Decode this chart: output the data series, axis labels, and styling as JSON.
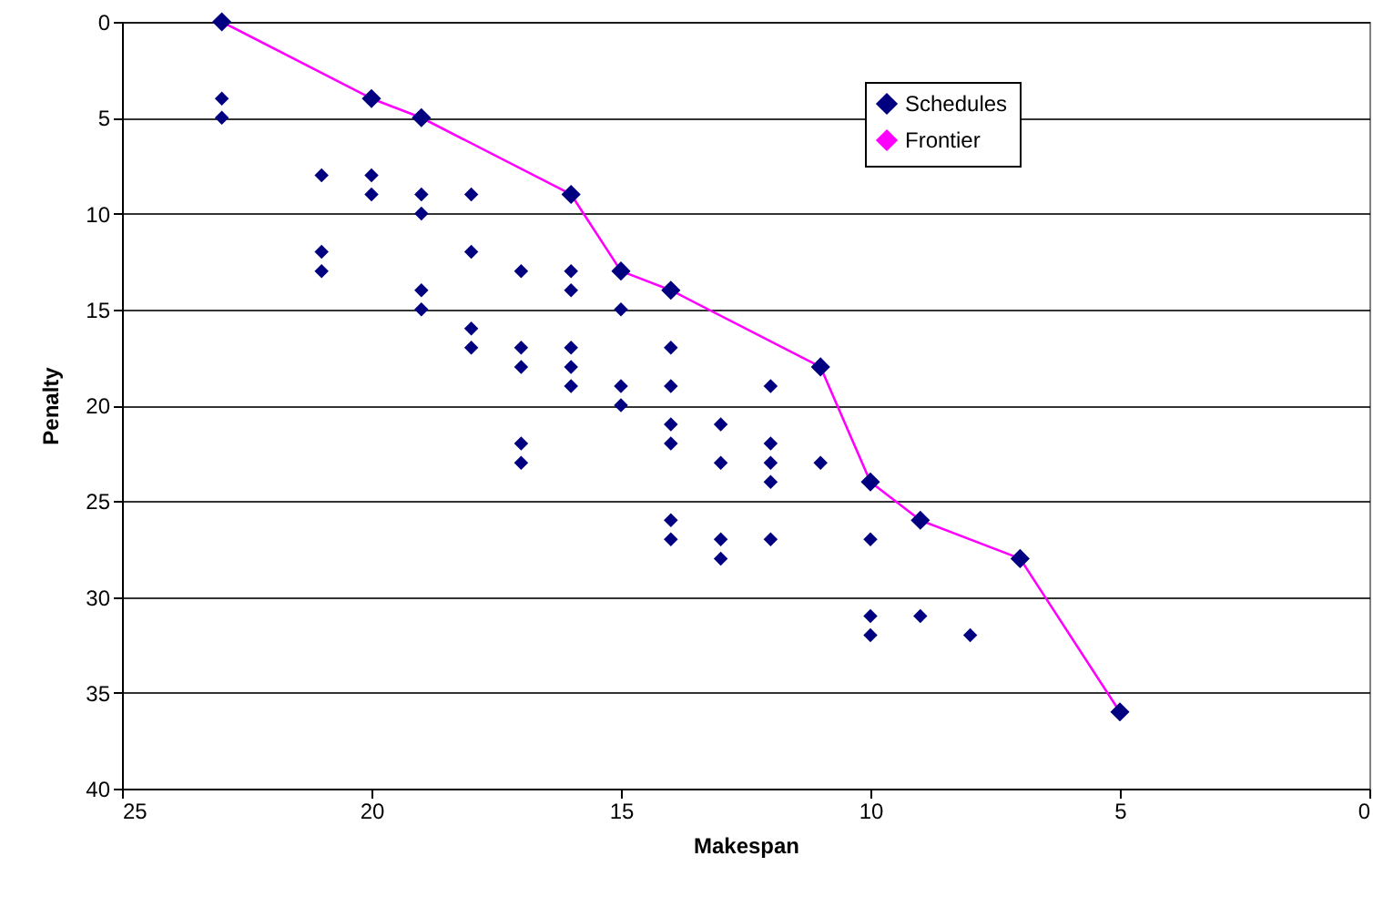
{
  "chart_data": {
    "type": "scatter",
    "xlabel": "Makespan",
    "ylabel": "Penalty",
    "xlim": [
      25,
      0
    ],
    "xticks": [
      25,
      20,
      15,
      10,
      5,
      0
    ],
    "ylim": [
      40,
      0
    ],
    "yticks": [
      0,
      5,
      10,
      15,
      20,
      25,
      30,
      35,
      40
    ],
    "grid": "y",
    "legend": "top right",
    "marker": "diamond",
    "series": [
      {
        "name": "Schedules",
        "type": "scatter",
        "color": "#000080",
        "x": [
          23,
          23,
          23,
          21,
          21,
          21,
          20,
          20,
          20,
          19,
          19,
          19,
          19,
          19,
          18,
          18,
          18,
          18,
          17,
          17,
          17,
          17,
          17,
          16,
          16,
          16,
          16,
          16,
          16,
          15,
          15,
          15,
          15,
          14,
          14,
          14,
          14,
          14,
          14,
          14,
          13,
          13,
          13,
          13,
          12,
          12,
          12,
          12,
          12,
          11,
          11,
          10,
          10,
          10,
          10,
          9,
          9,
          8,
          7,
          5
        ],
        "values": [
          0,
          4,
          5,
          8,
          12,
          13,
          4,
          8,
          9,
          5,
          9,
          10,
          14,
          15,
          9,
          12,
          16,
          17,
          13,
          17,
          18,
          22,
          23,
          9,
          13,
          14,
          17,
          18,
          19,
          13,
          15,
          19,
          20,
          14,
          17,
          19,
          21,
          22,
          26,
          27,
          21,
          23,
          27,
          28,
          19,
          22,
          23,
          24,
          27,
          18,
          23,
          24,
          27,
          31,
          32,
          26,
          31,
          32,
          28,
          36
        ]
      },
      {
        "name": "Frontier",
        "type": "line",
        "color": "#ff00ff",
        "x": [
          23,
          20,
          19,
          16,
          15,
          14,
          11,
          10,
          9,
          7,
          5
        ],
        "values": [
          0,
          4,
          5,
          9,
          13,
          14,
          18,
          24,
          26,
          28,
          36
        ]
      }
    ]
  }
}
